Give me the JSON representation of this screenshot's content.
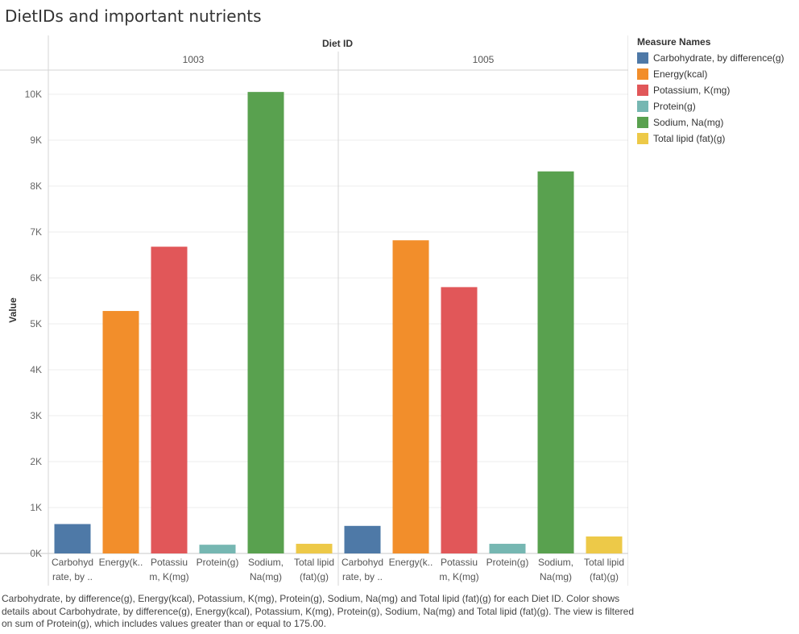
{
  "page": {
    "title": "DietIDs and important nutrients"
  },
  "chart_data": {
    "type": "bar",
    "column_header": "Diet ID",
    "panels": [
      "1003",
      "1005"
    ],
    "categories": [
      "Carbohydrate, by difference(g)",
      "Energy(kcal)",
      "Potassium, K(mg)",
      "Protein(g)",
      "Sodium, Na(mg)",
      "Total lipid (fat)(g)"
    ],
    "category_labels": [
      [
        "Carbohyd",
        "rate, by .."
      ],
      [
        "Energy(k..",
        ""
      ],
      [
        "Potassiu",
        "m, K(mg)"
      ],
      [
        "Protein(g)",
        ""
      ],
      [
        "Sodium,",
        "Na(mg)"
      ],
      [
        "Total lipid",
        "(fat)(g)"
      ]
    ],
    "colors": [
      "#4e79a7",
      "#f28e2b",
      "#e15759",
      "#76b7b2",
      "#59a14f",
      "#edc948"
    ],
    "series": [
      {
        "panel": "1003",
        "values": [
          640,
          5280,
          6680,
          190,
          10050,
          210
        ]
      },
      {
        "panel": "1005",
        "values": [
          600,
          6820,
          5800,
          210,
          8320,
          370
        ]
      }
    ],
    "ylabel": "Value",
    "ylim": [
      0,
      10500
    ],
    "yticks": [
      0,
      1000,
      2000,
      3000,
      4000,
      5000,
      6000,
      7000,
      8000,
      9000,
      10000
    ],
    "ytick_labels": [
      "0K",
      "1K",
      "2K",
      "3K",
      "4K",
      "5K",
      "6K",
      "7K",
      "8K",
      "9K",
      "10K"
    ],
    "grid": true,
    "legend_position": "right"
  },
  "legend": {
    "title": "Measure Names",
    "items": [
      "Carbohydrate, by difference(g)",
      "Energy(kcal)",
      "Potassium, K(mg)",
      "Protein(g)",
      "Sodium, Na(mg)",
      "Total lipid (fat)(g)"
    ]
  },
  "caption": {
    "text": "Carbohydrate, by difference(g), Energy(kcal), Potassium, K(mg), Protein(g), Sodium, Na(mg) and Total lipid (fat)(g) for each Diet ID.  Color shows details about Carbohydrate, by difference(g), Energy(kcal), Potassium, K(mg), Protein(g), Sodium, Na(mg) and Total lipid (fat)(g). The view is filtered on sum of Protein(g), which includes values greater than or equal to 175.00."
  }
}
